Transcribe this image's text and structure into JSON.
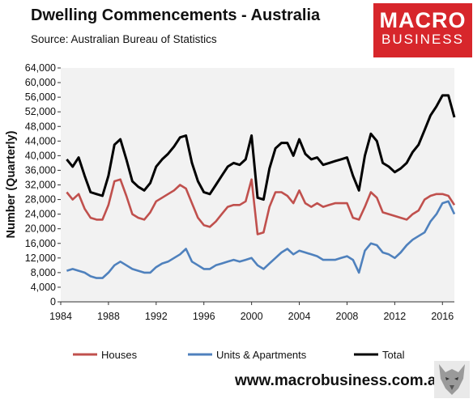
{
  "title": "Dwelling Commencements - Australia",
  "subtitle": "Source: Australian Bureau of Statistics",
  "logo": {
    "line1": "MACRO",
    "line2": "BUSINESS"
  },
  "footer_url": "www.macrobusiness.com.au",
  "colors": {
    "houses": "#c0504d",
    "units": "#4f81bd",
    "total": "#000000",
    "plot_bg": "#f2f2f2",
    "logo_bg": "#d7262b"
  },
  "chart_data": {
    "type": "line",
    "xlabel": "",
    "ylabel": "Number (Quarterly)",
    "xlim": [
      1984,
      2017
    ],
    "ylim": [
      0,
      64000
    ],
    "y_ticks": [
      "0",
      "4,000",
      "8,000",
      "12,000",
      "16,000",
      "20,000",
      "24,000",
      "28,000",
      "32,000",
      "36,000",
      "40,000",
      "44,000",
      "48,000",
      "52,000",
      "56,000",
      "60,000",
      "64,000"
    ],
    "x_ticks": [
      "1984",
      "1988",
      "1992",
      "1996",
      "2000",
      "2004",
      "2008",
      "2012",
      "2016"
    ],
    "legend_position": "bottom",
    "x": [
      1984.5,
      1985.0,
      1985.5,
      1986.0,
      1986.5,
      1987.0,
      1987.5,
      1988.0,
      1988.5,
      1989.0,
      1989.5,
      1990.0,
      1990.5,
      1991.0,
      1991.5,
      1992.0,
      1992.5,
      1993.0,
      1993.5,
      1994.0,
      1994.5,
      1995.0,
      1995.5,
      1996.0,
      1996.5,
      1997.0,
      1997.5,
      1998.0,
      1998.5,
      1999.0,
      1999.5,
      2000.0,
      2000.5,
      2001.0,
      2001.5,
      2002.0,
      2002.5,
      2003.0,
      2003.5,
      2004.0,
      2004.5,
      2005.0,
      2005.5,
      2006.0,
      2006.5,
      2007.0,
      2007.5,
      2008.0,
      2008.5,
      2009.0,
      2009.5,
      2010.0,
      2010.5,
      2011.0,
      2011.5,
      2012.0,
      2012.5,
      2013.0,
      2013.5,
      2014.0,
      2014.5,
      2015.0,
      2015.5,
      2016.0,
      2016.5,
      2017.0
    ],
    "series": [
      {
        "name": "Houses",
        "values": [
          30000,
          28000,
          29500,
          25500,
          23000,
          22500,
          22500,
          26500,
          33000,
          33500,
          29000,
          24000,
          23000,
          22500,
          24500,
          27500,
          28500,
          29500,
          30500,
          32000,
          31000,
          27000,
          23000,
          21000,
          20500,
          22000,
          24000,
          26000,
          26500,
          26500,
          27500,
          33500,
          18500,
          19000,
          26000,
          30000,
          30000,
          29000,
          27000,
          30500,
          27000,
          26000,
          27000,
          26000,
          26500,
          27000,
          27000,
          27000,
          23000,
          22500,
          26000,
          30000,
          28500,
          24500,
          24000,
          23500,
          23000,
          22500,
          24000,
          25000,
          28000,
          29000,
          29500,
          29500,
          29000,
          26500
        ]
      },
      {
        "name": "Units & Apartments",
        "values": [
          8500,
          9000,
          8500,
          8000,
          7000,
          6500,
          6500,
          8000,
          10000,
          11000,
          10000,
          9000,
          8500,
          8000,
          8000,
          9500,
          10500,
          11000,
          12000,
          13000,
          14500,
          11000,
          10000,
          9000,
          9000,
          10000,
          10500,
          11000,
          11500,
          11000,
          11500,
          12000,
          10000,
          9000,
          10500,
          12000,
          13500,
          14500,
          13000,
          14000,
          13500,
          13000,
          12500,
          11500,
          11500,
          11500,
          12000,
          12500,
          11500,
          8000,
          14000,
          16000,
          15500,
          13500,
          13000,
          12000,
          13500,
          15500,
          17000,
          18000,
          19000,
          22000,
          24000,
          27000,
          27500,
          24000
        ]
      },
      {
        "name": "Total",
        "values": [
          39000,
          37000,
          39500,
          34500,
          30000,
          29500,
          29000,
          34500,
          43000,
          44500,
          39000,
          33000,
          31500,
          30500,
          32500,
          37000,
          39000,
          40500,
          42500,
          45000,
          45500,
          38000,
          33000,
          30000,
          29500,
          32000,
          34500,
          37000,
          38000,
          37500,
          39000,
          45500,
          28500,
          28000,
          36500,
          42000,
          43500,
          43500,
          40000,
          44500,
          40500,
          39000,
          39500,
          37500,
          38000,
          38500,
          39000,
          39500,
          34500,
          30500,
          40000,
          46000,
          44000,
          38000,
          37000,
          35500,
          36500,
          38000,
          41000,
          43000,
          47000,
          51000,
          53500,
          56500,
          56500,
          50500
        ]
      }
    ]
  }
}
